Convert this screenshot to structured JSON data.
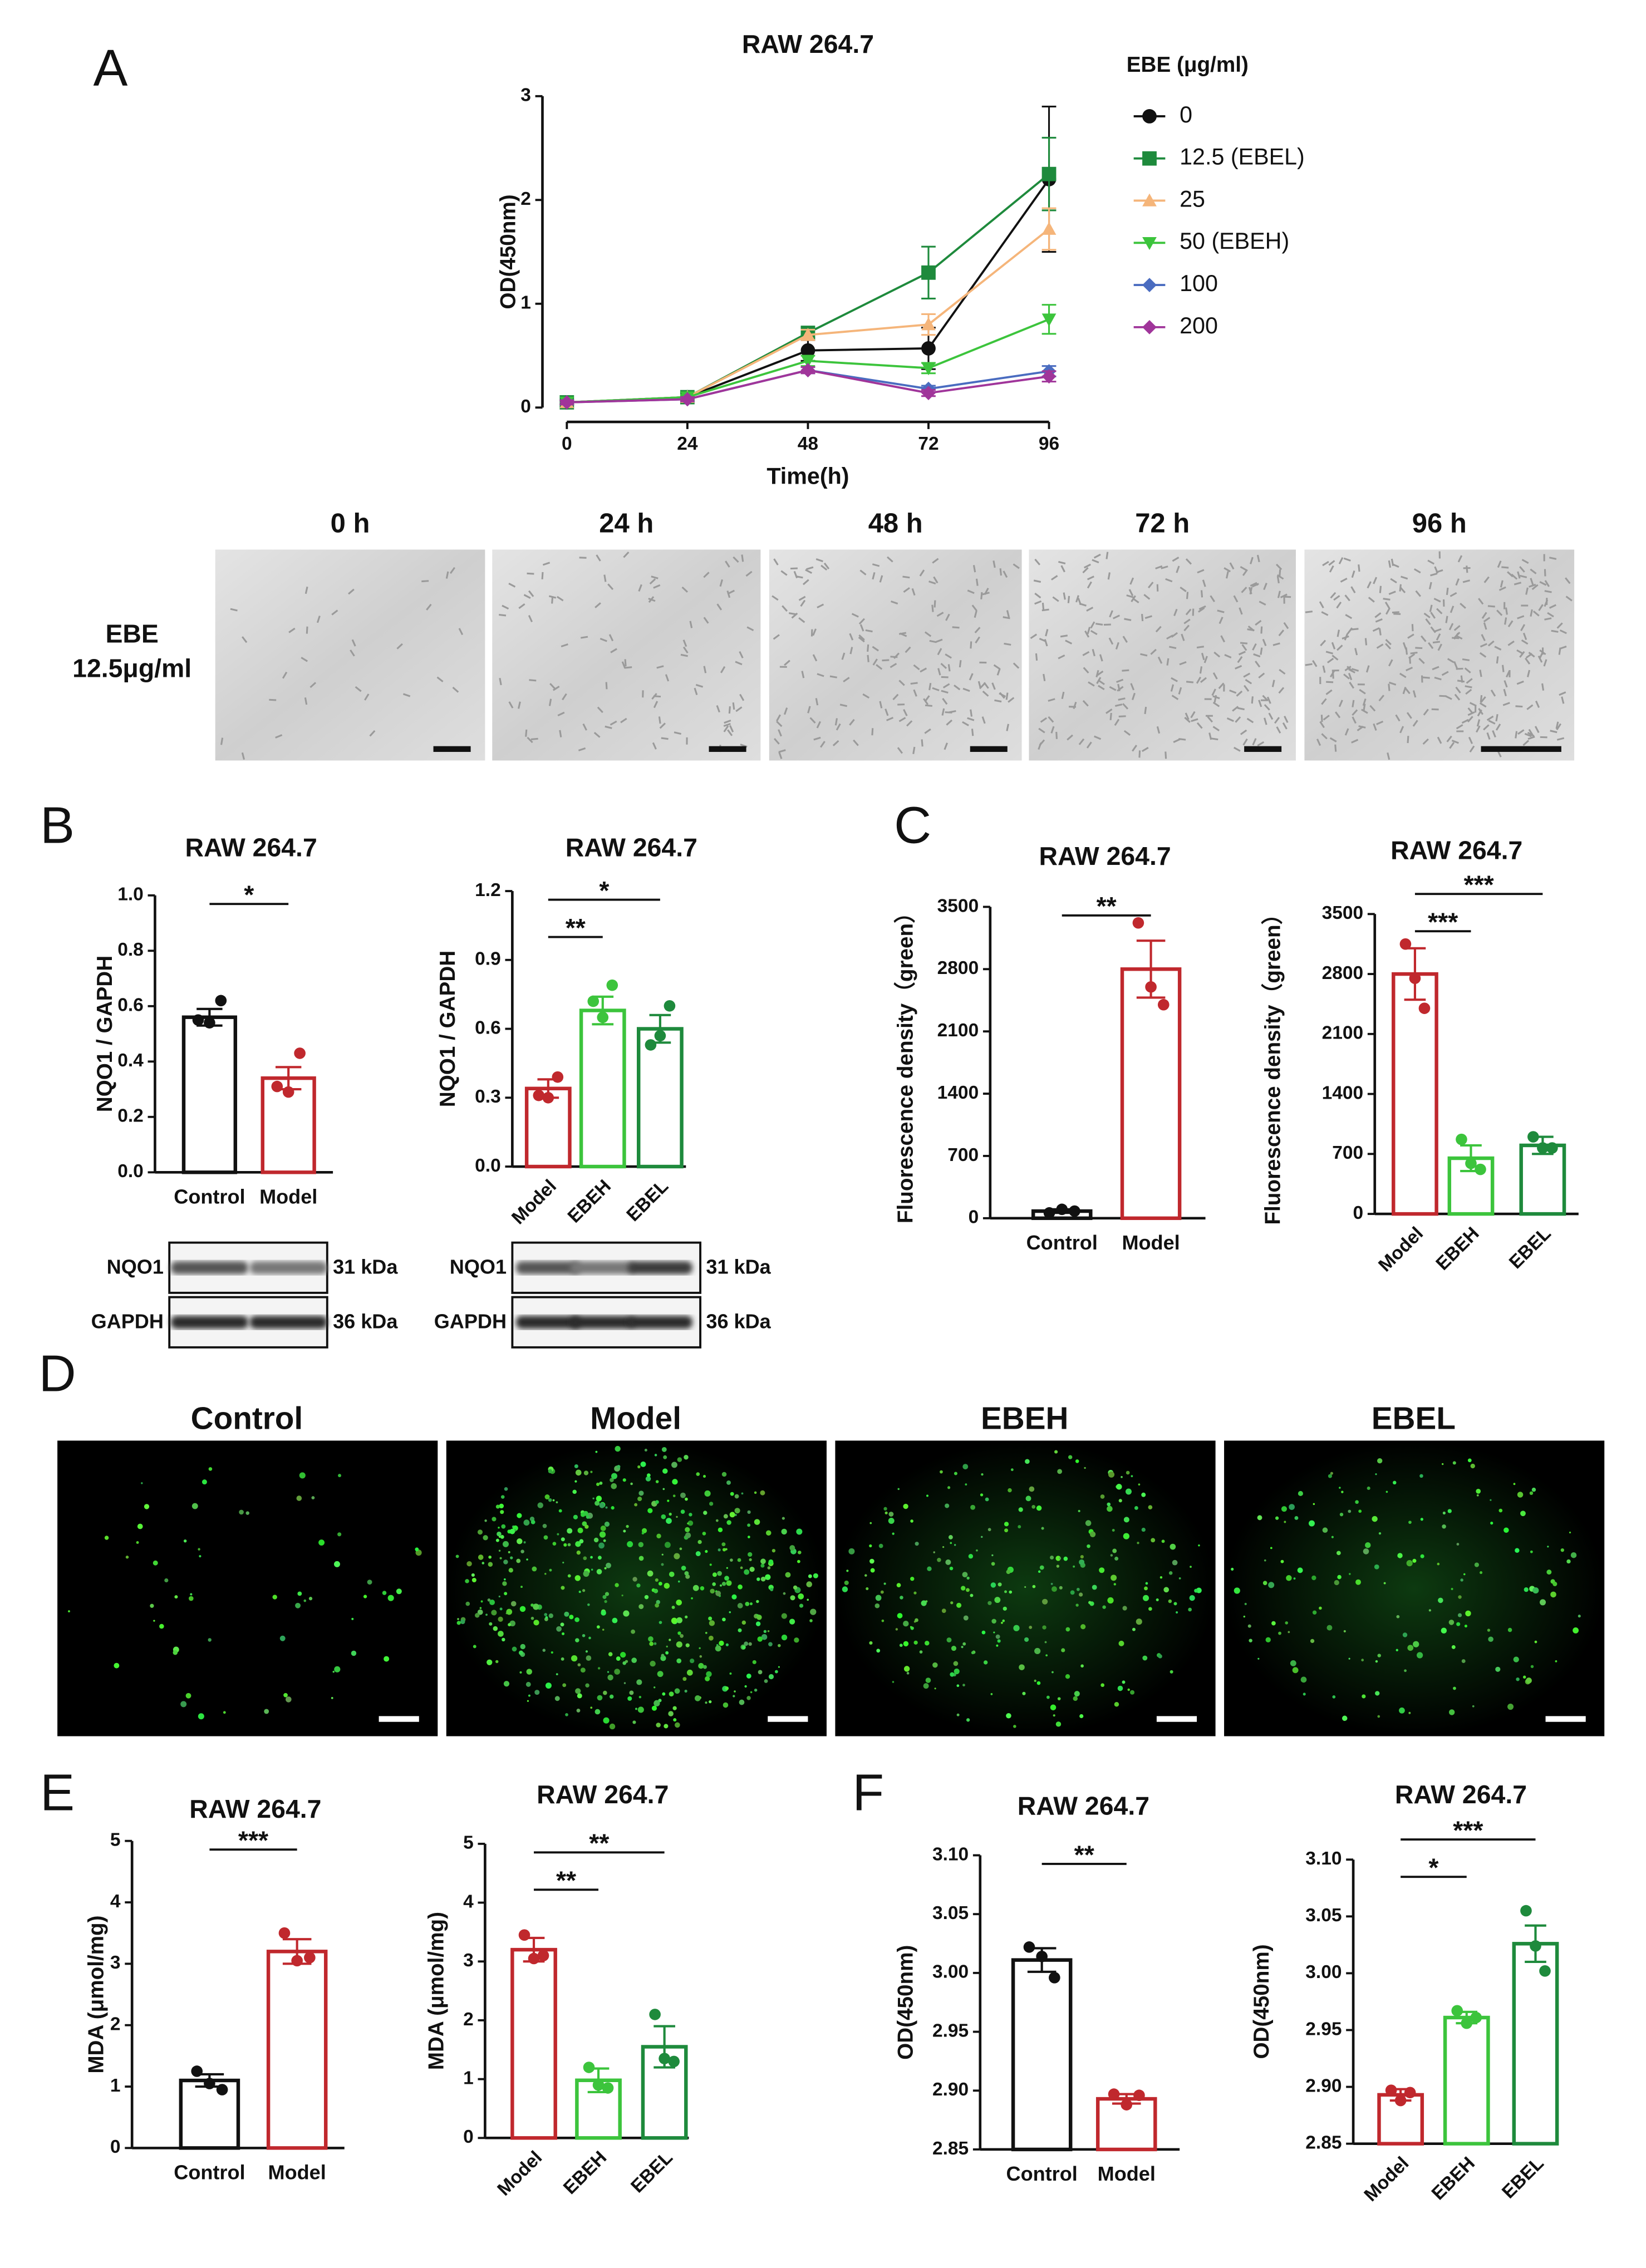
{
  "figure": {
    "panel_labels": [
      "A",
      "B",
      "C",
      "D",
      "E",
      "F"
    ],
    "micrograph_captions": [
      "0 h",
      "24 h",
      "48 h",
      "72 h",
      "96 h"
    ],
    "micrograph_row_label": [
      "EBE",
      "12.5μg/ml"
    ],
    "fluorescence_captions": [
      "Control",
      "Model",
      "EBEH",
      "EBEL"
    ]
  },
  "chart_data": [
    {
      "type": "line",
      "title": "RAW 264.7",
      "x_label": "Time(h)",
      "y_label": "OD(450nm)",
      "legend_title": "EBE (μg/ml)",
      "x": [
        0,
        24,
        48,
        72,
        96
      ],
      "xlim": [
        0,
        96
      ],
      "xticks": [
        0,
        24,
        48,
        72,
        96
      ],
      "ylim": [
        0,
        3
      ],
      "yticks": [
        0,
        1,
        2,
        3
      ],
      "series": [
        {
          "name": "0",
          "color": "#111111",
          "marker": "circle",
          "values": [
            0.05,
            0.1,
            0.55,
            0.57,
            2.2
          ],
          "errors": [
            0.02,
            0.02,
            0.1,
            0.2,
            0.7
          ]
        },
        {
          "name": "12.5 (EBEL)",
          "color": "#1e8a3c",
          "marker": "square",
          "values": [
            0.05,
            0.1,
            0.72,
            1.3,
            2.25
          ],
          "errors": [
            0.02,
            0.02,
            0.05,
            0.25,
            0.35
          ]
        },
        {
          "name": "25",
          "color": "#f5b57a",
          "marker": "triangle-up",
          "values": [
            0.05,
            0.1,
            0.7,
            0.8,
            1.72
          ],
          "errors": [
            0.02,
            0.02,
            0.05,
            0.1,
            0.2
          ]
        },
        {
          "name": "50 (EBEH)",
          "color": "#3cc43c",
          "marker": "triangle-down",
          "values": [
            0.05,
            0.1,
            0.45,
            0.38,
            0.85
          ],
          "errors": [
            0.02,
            0.02,
            0.05,
            0.05,
            0.14
          ]
        },
        {
          "name": "100",
          "color": "#4a6cc0",
          "marker": "diamond",
          "values": [
            0.05,
            0.08,
            0.36,
            0.18,
            0.35
          ],
          "errors": [
            0.02,
            0.02,
            0.03,
            0.03,
            0.05
          ]
        },
        {
          "name": "200",
          "color": "#a0359a",
          "marker": "diamond",
          "values": [
            0.05,
            0.08,
            0.36,
            0.14,
            0.3
          ],
          "errors": [
            0.02,
            0.02,
            0.03,
            0.03,
            0.05
          ]
        }
      ]
    },
    {
      "type": "bar",
      "title": "RAW 264.7",
      "y_label": "NQO1 / GAPDH",
      "categories": [
        "Control",
        "Model"
      ],
      "values": [
        0.56,
        0.34
      ],
      "errors": [
        0.03,
        0.04
      ],
      "points": [
        [
          0.55,
          0.54,
          0.62
        ],
        [
          0.31,
          0.29,
          0.43
        ]
      ],
      "colors": [
        "#111111",
        "#c0282d"
      ],
      "ylim": [
        0,
        1
      ],
      "yticks": [
        {
          "value": 0,
          "label": "0.0"
        },
        0.2,
        0.4,
        0.6,
        0.8,
        {
          "value": 1,
          "label": "1.0"
        }
      ],
      "significance": [
        {
          "from": 0,
          "to": 1,
          "label": "*"
        }
      ],
      "blot": [
        {
          "protein": "NQO1",
          "size": "31 kDa"
        },
        {
          "protein": "GAPDH",
          "size": "36 kDa"
        }
      ]
    },
    {
      "type": "bar",
      "title": "RAW 264.7",
      "y_label": "NQO1 / GAPDH",
      "categories": [
        "Model",
        "EBEH",
        "EBEL"
      ],
      "x_label_rotation": 45,
      "values": [
        0.34,
        0.68,
        0.6
      ],
      "errors": [
        0.04,
        0.06,
        0.06
      ],
      "points": [
        [
          0.31,
          0.3,
          0.39
        ],
        [
          0.72,
          0.65,
          0.79
        ],
        [
          0.53,
          0.57,
          0.7
        ]
      ],
      "colors": [
        "#c0282d",
        "#3cc43c",
        "#1e8a3c"
      ],
      "ylim": [
        0,
        1.2
      ],
      "yticks": [
        {
          "value": 0,
          "label": "0.0"
        },
        0.3,
        0.6,
        0.9,
        1.2
      ],
      "significance": [
        {
          "from": 0,
          "to": 1,
          "label": "**"
        },
        {
          "from": 0,
          "to": 2,
          "label": "*"
        }
      ],
      "blot": [
        {
          "protein": "NQO1",
          "size": "31 kDa"
        },
        {
          "protein": "GAPDH",
          "size": "36 kDa"
        }
      ]
    },
    {
      "type": "bar",
      "title": "RAW 264.7",
      "y_label": "Fluorescence density（green）",
      "categories": [
        "Control",
        "Model"
      ],
      "values": [
        80,
        2800
      ],
      "errors": [
        20,
        320
      ],
      "points": [
        [
          60,
          100,
          80
        ],
        [
          3320,
          2600,
          2400
        ]
      ],
      "colors": [
        "#111111",
        "#c0282d"
      ],
      "ylim": [
        0,
        3500
      ],
      "yticks": [
        0,
        700,
        1400,
        2100,
        2800,
        3500
      ],
      "significance": [
        {
          "from": 0,
          "to": 1,
          "label": "**"
        }
      ]
    },
    {
      "type": "bar",
      "title": "RAW 264.7",
      "y_label": "Fluorescence density（green）",
      "categories": [
        "Model",
        "EBEH",
        "EBEL"
      ],
      "x_label_rotation": 45,
      "values": [
        2800,
        650,
        800
      ],
      "errors": [
        300,
        150,
        100
      ],
      "points": [
        [
          3150,
          2750,
          2400
        ],
        [
          870,
          590,
          520
        ],
        [
          900,
          770,
          770
        ]
      ],
      "colors": [
        "#c0282d",
        "#3cc43c",
        "#1e8a3c"
      ],
      "ylim": [
        0,
        3500
      ],
      "yticks": [
        0,
        700,
        1400,
        2100,
        2800,
        3500
      ],
      "significance": [
        {
          "from": 0,
          "to": 1,
          "label": "***"
        },
        {
          "from": 0,
          "to": 2,
          "label": "***"
        }
      ]
    },
    {
      "type": "bar",
      "title": "RAW 264.7",
      "y_label": "MDA (μmol/mg)",
      "categories": [
        "Control",
        "Model"
      ],
      "values": [
        1.1,
        3.2
      ],
      "errors": [
        0.1,
        0.2
      ],
      "points": [
        [
          1.25,
          1.05,
          0.95
        ],
        [
          3.5,
          3.05,
          3.1
        ]
      ],
      "colors": [
        "#111111",
        "#c0282d"
      ],
      "ylim": [
        0,
        5
      ],
      "yticks": [
        0,
        1,
        2,
        3,
        4,
        5
      ],
      "significance": [
        {
          "from": 0,
          "to": 1,
          "label": "***"
        }
      ]
    },
    {
      "type": "bar",
      "title": "RAW 264.7",
      "y_label": "MDA (μmol/mg)",
      "categories": [
        "Model",
        "EBEH",
        "EBEL"
      ],
      "x_label_rotation": 45,
      "values": [
        3.2,
        0.98,
        1.55
      ],
      "errors": [
        0.2,
        0.2,
        0.35
      ],
      "points": [
        [
          3.45,
          3.05,
          3.1
        ],
        [
          1.2,
          0.9,
          0.85
        ],
        [
          2.1,
          1.35,
          1.3
        ]
      ],
      "colors": [
        "#c0282d",
        "#3cc43c",
        "#1e8a3c"
      ],
      "ylim": [
        0,
        5
      ],
      "yticks": [
        0,
        1,
        2,
        3,
        4,
        5
      ],
      "significance": [
        {
          "from": 0,
          "to": 1,
          "label": "**"
        },
        {
          "from": 0,
          "to": 2,
          "label": "**"
        }
      ]
    },
    {
      "type": "bar",
      "title": "RAW 264.7",
      "y_label": "OD(450nm)",
      "categories": [
        "Control",
        "Model"
      ],
      "values": [
        3.011,
        2.893
      ],
      "errors": [
        0.01,
        0.004
      ],
      "points": [
        [
          3.022,
          3.014,
          2.996
        ],
        [
          2.897,
          2.888,
          2.896
        ]
      ],
      "colors": [
        "#111111",
        "#c0282d"
      ],
      "ylim": [
        2.85,
        3.1
      ],
      "yticks": [
        2.85,
        {
          "value": 2.9,
          "label": "2.90"
        },
        2.95,
        {
          "value": 3,
          "label": "3.00"
        },
        3.05,
        {
          "value": 3.1,
          "label": "3.10"
        }
      ],
      "significance": [
        {
          "from": 0,
          "to": 1,
          "label": "**"
        }
      ]
    },
    {
      "type": "bar",
      "title": "RAW 264.7",
      "y_label": "OD(450nm)",
      "categories": [
        "Model",
        "EBEH",
        "EBEL"
      ],
      "x_label_rotation": 45,
      "values": [
        2.893,
        2.961,
        3.026
      ],
      "errors": [
        0.005,
        0.005,
        0.016
      ],
      "points": [
        [
          2.897,
          2.888,
          2.895
        ],
        [
          2.967,
          2.956,
          2.961
        ],
        [
          3.055,
          3.024,
          3.002
        ]
      ],
      "colors": [
        "#c0282d",
        "#3cc43c",
        "#1e8a3c"
      ],
      "ylim": [
        2.85,
        3.1
      ],
      "yticks": [
        2.85,
        {
          "value": 2.9,
          "label": "2.90"
        },
        2.95,
        {
          "value": 3,
          "label": "3.00"
        },
        3.05,
        {
          "value": 3.1,
          "label": "3.10"
        }
      ],
      "significance": [
        {
          "from": 0,
          "to": 1,
          "label": "*"
        },
        {
          "from": 0,
          "to": 2,
          "label": "***"
        }
      ]
    }
  ]
}
